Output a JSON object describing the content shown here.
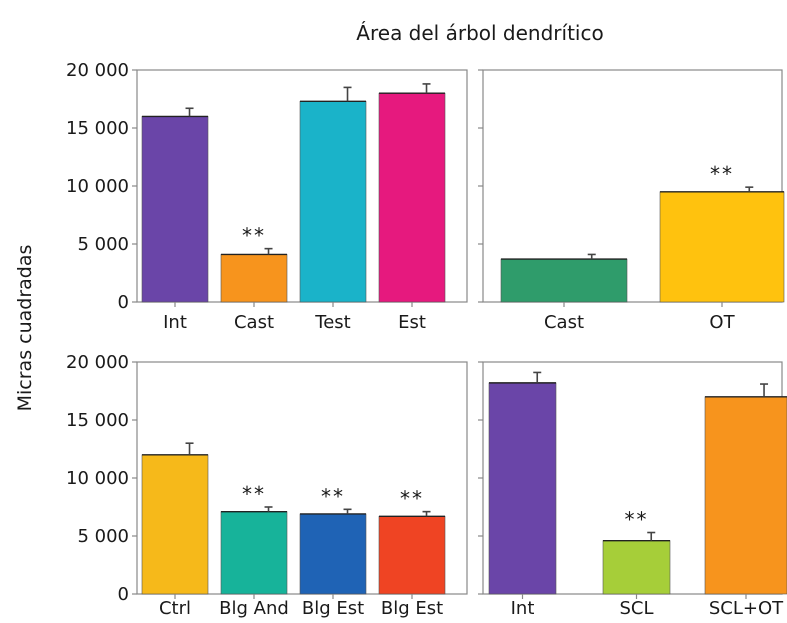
{
  "colors": {
    "purple": "#6a45a8",
    "orange": "#f7941d",
    "cyan": "#1ab3c9",
    "magenta": "#e6197e",
    "green": "#2f9c6b",
    "yellow": "#ffc20e",
    "ctrl_yellow": "#f6b91a",
    "teal": "#17b39a",
    "blue": "#1f63b5",
    "red": "#ef4423",
    "lime": "#a6ce39",
    "orange2": "#f7941d"
  },
  "chart_data": [
    {
      "type": "bar",
      "title": "Área del árbol dendrítico",
      "ylabel": "Micras cuadradas",
      "ylim": [
        0,
        20000
      ],
      "yticks": [
        "20 000",
        "15 000",
        "10 000",
        "5 000",
        "0"
      ],
      "categories": [
        "Int",
        "Cast",
        "Test",
        "Est"
      ],
      "values": [
        16000,
        4100,
        17300,
        18000
      ],
      "errors": [
        700,
        500,
        1200,
        800
      ],
      "significance": [
        "",
        "**",
        "",
        ""
      ],
      "colors": [
        "purple",
        "orange",
        "cyan",
        "magenta"
      ]
    },
    {
      "type": "bar",
      "ylim": [
        0,
        20000
      ],
      "categories": [
        "Cast",
        "OT"
      ],
      "values": [
        3700,
        9500
      ],
      "errors": [
        400,
        400
      ],
      "significance": [
        "",
        "**"
      ],
      "colors": [
        "green",
        "yellow"
      ]
    },
    {
      "type": "bar",
      "ylim": [
        0,
        20000
      ],
      "yticks": [
        "20 000",
        "15 000",
        "10 000",
        "5 000",
        "0"
      ],
      "categories": [
        "Ctrl",
        "Blg And",
        "Blg Est",
        "Blg Est"
      ],
      "values": [
        12000,
        7100,
        6900,
        6700
      ],
      "errors": [
        1000,
        400,
        400,
        400
      ],
      "significance": [
        "",
        "**",
        "**",
        "**"
      ],
      "colors": [
        "ctrl_yellow",
        "teal",
        "blue",
        "red"
      ]
    },
    {
      "type": "bar",
      "ylim": [
        0,
        20000
      ],
      "categories": [
        "Int",
        "SCL",
        "SCL+OT"
      ],
      "values": [
        18200,
        4600,
        17000
      ],
      "errors": [
        900,
        700,
        1100
      ],
      "significance": [
        "",
        "**",
        ""
      ],
      "colors": [
        "purple",
        "lime",
        "orange2"
      ]
    }
  ]
}
